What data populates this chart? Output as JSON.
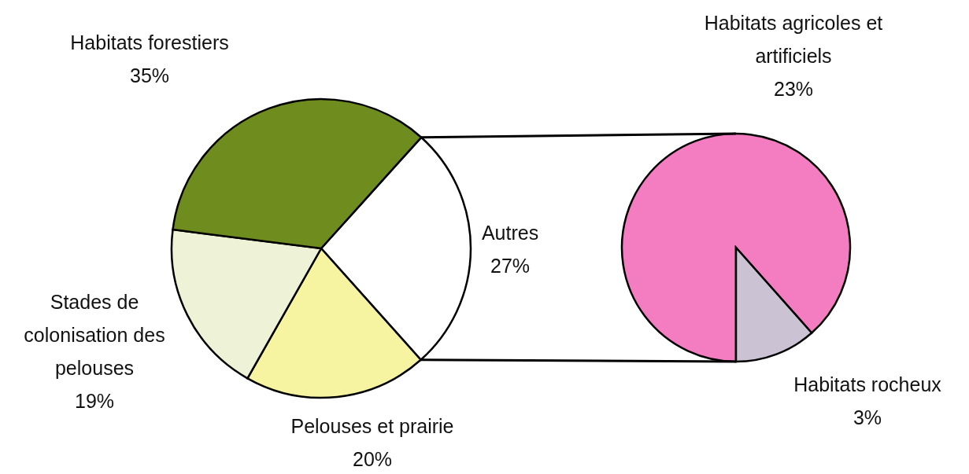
{
  "chart_data": [
    {
      "type": "pie",
      "categories": [
        "Autres",
        "Pelouses et prairie",
        "Stades de colonisation des pelouses",
        "Habitats forestiers"
      ],
      "values": [
        27,
        20,
        19,
        35
      ],
      "colors": [
        "#ffffff",
        "#f6f4a0",
        "#eef3d8",
        "#6f8c1f"
      ],
      "value_labels": [
        "27%",
        "20%",
        "19%",
        "35%"
      ]
    },
    {
      "type": "pie",
      "categories": [
        "Habitats agricoles et artificiels",
        "Habitats rocheux"
      ],
      "values": [
        23,
        3
      ],
      "colors": [
        "#f47cc0",
        "#cbc3d3"
      ],
      "value_labels": [
        "23%",
        "3%"
      ]
    }
  ]
}
